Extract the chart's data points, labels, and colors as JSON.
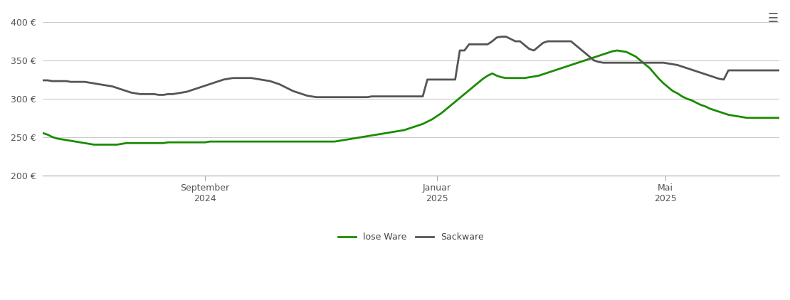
{
  "title": "",
  "background_color": "#ffffff",
  "grid_color": "#cccccc",
  "ylim": [
    200,
    415
  ],
  "yticks": [
    200,
    250,
    300,
    350,
    400
  ],
  "ylabel_format": "{} €",
  "x_tick_labels": [
    [
      "September\n2024",
      0.22
    ],
    [
      "Januar\n2025",
      0.535
    ],
    [
      "Mai\n2025",
      0.845
    ]
  ],
  "line_lose_color": "#1a8c00",
  "line_sack_color": "#555555",
  "line_width": 2.0,
  "legend_labels": [
    "lose Ware",
    "Sackware"
  ],
  "lose_ware": [
    255,
    253,
    250,
    248,
    247,
    246,
    245,
    244,
    243,
    242,
    241,
    240,
    240,
    240,
    240,
    240,
    240,
    241,
    242,
    242,
    242,
    242,
    242,
    242,
    242,
    242,
    242,
    243,
    243,
    243,
    243,
    243,
    243,
    243,
    243,
    243,
    244,
    244,
    244,
    244,
    244,
    244,
    244,
    244,
    244,
    244,
    244,
    244,
    244,
    244,
    244,
    244,
    244,
    244,
    244,
    244,
    244,
    244,
    244,
    244,
    244,
    244,
    244,
    244,
    245,
    246,
    247,
    248,
    249,
    250,
    251,
    252,
    253,
    254,
    255,
    256,
    257,
    258,
    259,
    261,
    263,
    265,
    267,
    270,
    273,
    277,
    281,
    286,
    291,
    296,
    301,
    306,
    311,
    316,
    321,
    326,
    330,
    333,
    330,
    328,
    327,
    327,
    327,
    327,
    327,
    328,
    329,
    330,
    332,
    334,
    336,
    338,
    340,
    342,
    344,
    346,
    348,
    350,
    352,
    354,
    356,
    358,
    360,
    362,
    363,
    362,
    361,
    358,
    355,
    350,
    345,
    340,
    333,
    326,
    320,
    315,
    310,
    307,
    303,
    300,
    298,
    295,
    292,
    290,
    287,
    285,
    283,
    281,
    279,
    278,
    277,
    276,
    275,
    275,
    275,
    275,
    275,
    275,
    275,
    275
  ],
  "sack_ware": [
    324,
    324,
    323,
    323,
    323,
    323,
    322,
    322,
    322,
    322,
    321,
    320,
    319,
    318,
    317,
    316,
    314,
    312,
    310,
    308,
    307,
    306,
    306,
    306,
    306,
    305,
    305,
    306,
    306,
    307,
    308,
    309,
    311,
    313,
    315,
    317,
    319,
    321,
    323,
    325,
    326,
    327,
    327,
    327,
    327,
    327,
    326,
    325,
    324,
    323,
    321,
    319,
    316,
    313,
    310,
    308,
    306,
    304,
    303,
    302,
    302,
    302,
    302,
    302,
    302,
    302,
    302,
    302,
    302,
    302,
    302,
    303,
    303,
    303,
    303,
    303,
    303,
    303,
    303,
    303,
    303,
    303,
    303,
    325,
    325,
    325,
    325,
    325,
    325,
    325,
    363,
    363,
    371,
    371,
    371,
    371,
    371,
    375,
    380,
    381,
    381,
    378,
    375,
    375,
    370,
    365,
    363,
    368,
    373,
    375,
    375,
    375,
    375,
    375,
    375,
    370,
    365,
    360,
    355,
    350,
    348,
    347,
    347,
    347,
    347,
    347,
    347,
    347,
    347,
    347,
    347,
    347,
    347,
    347,
    347,
    346,
    345,
    344,
    342,
    340,
    338,
    336,
    334,
    332,
    330,
    328,
    326,
    325,
    337,
    337,
    337,
    337,
    337,
    337,
    337,
    337,
    337,
    337,
    337,
    337
  ]
}
